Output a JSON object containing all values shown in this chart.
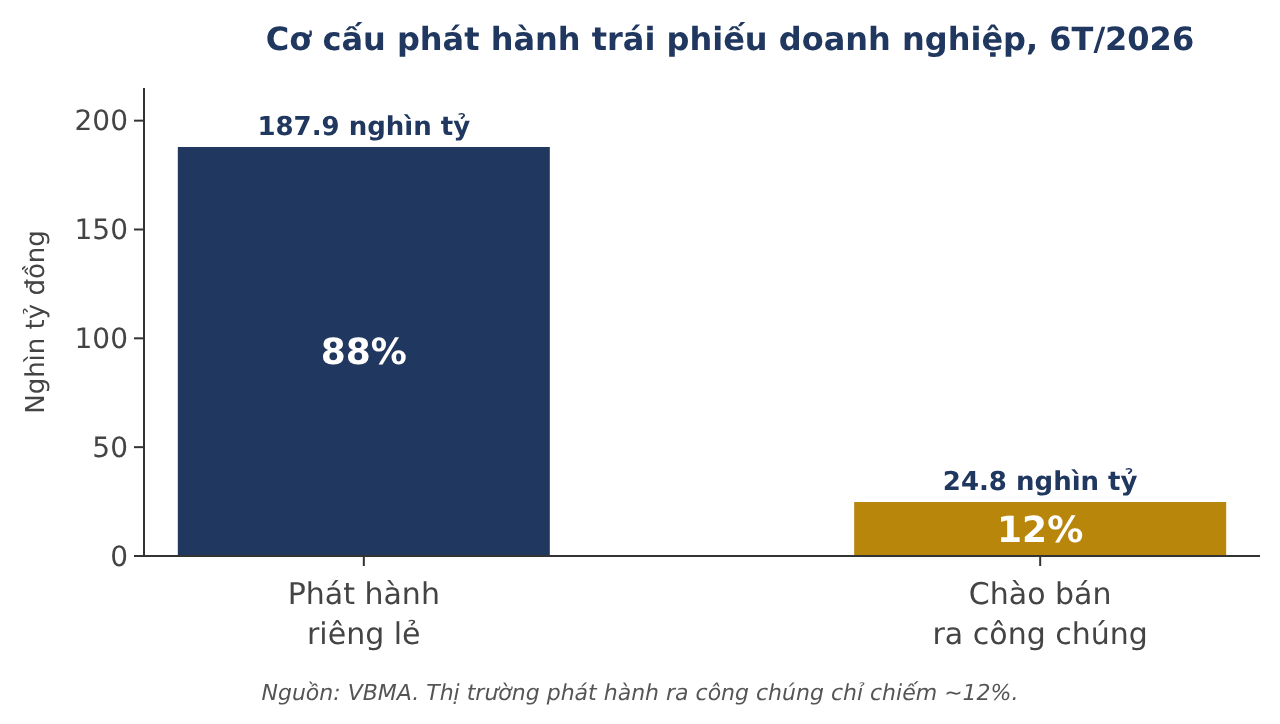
{
  "chart_data": {
    "type": "bar",
    "title": "Cơ cấu phát hành trái phiếu doanh nghiệp, 6T/2026",
    "ylabel": "Nghìn tỷ đồng",
    "categories": [
      "Phát hành riêng lẻ",
      "Chào bán ra công chúng"
    ],
    "values": [
      187.9,
      24.8
    ],
    "colors": [
      "#20375f",
      "#b8860b"
    ],
    "value_labels": [
      "187.9 nghìn tỷ",
      "24.8 nghìn tỷ"
    ],
    "ylim": [
      0,
      215
    ],
    "yticks": [
      0,
      50,
      100,
      150,
      200
    ],
    "grid": false,
    "annotations": [
      "88%",
      "12%",
      "Nguồn: VBMA. Thị trường phát hành ra công chúng chỉ chiếm ~12%."
    ]
  }
}
